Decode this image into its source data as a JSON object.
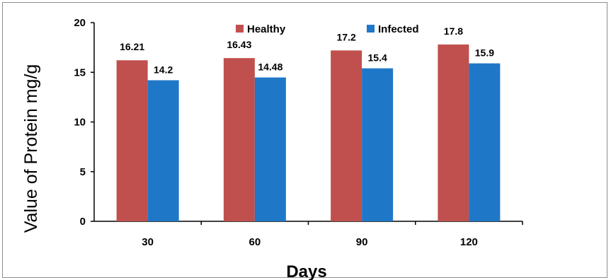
{
  "chart_data": {
    "type": "bar",
    "categories": [
      "30",
      "60",
      "90",
      "120"
    ],
    "series": [
      {
        "name": "Healthy",
        "values": [
          16.21,
          16.43,
          17.2,
          17.8
        ],
        "labels": [
          "16.21",
          "16.43",
          "17.2",
          "17.8"
        ],
        "color": "#c0504d"
      },
      {
        "name": "Infected",
        "values": [
          14.2,
          14.48,
          15.4,
          15.9
        ],
        "labels": [
          "14.2",
          "14.48",
          "15.4",
          "15.9"
        ],
        "color": "#1f77c8"
      }
    ],
    "xlabel": "Days",
    "ylabel": "Value of Protein mg/g",
    "ylim": [
      0,
      20
    ],
    "yticks": [
      "0",
      "5",
      "10",
      "15",
      "20"
    ],
    "legend_position": "top-center",
    "grid": false
  }
}
